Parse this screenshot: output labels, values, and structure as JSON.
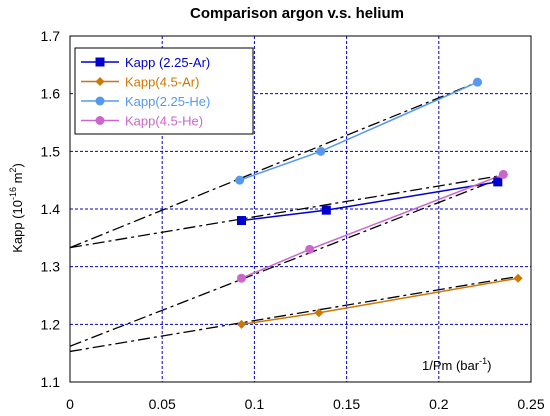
{
  "chart_data": {
    "type": "scatter",
    "title": "Comparison argon v.s. helium",
    "xlabel": {
      "base": "1/Pm (bar",
      "sup": "-1",
      "tail": ")"
    },
    "ylabel": {
      "base": "Kapp (10",
      "sup1": "-16",
      "mid": " m",
      "sup2": "2",
      "tail": ")"
    },
    "xlim": [
      0,
      0.25
    ],
    "ylim": [
      1.1,
      1.7
    ],
    "xticks": [
      0,
      0.05,
      0.1,
      0.15,
      0.2,
      0.25
    ],
    "xtick_labels": [
      "0",
      "0.05",
      "0.1",
      "0.15",
      "0.2",
      "0.25"
    ],
    "yticks": [
      1.1,
      1.2,
      1.3,
      1.4,
      1.5,
      1.6,
      1.7
    ],
    "ytick_labels": [
      "1.1",
      "1.2",
      "1.3",
      "1.4",
      "1.5",
      "1.6",
      "1.7"
    ],
    "grid": true,
    "legend_position": "top-left",
    "series": [
      {
        "name": "Kapp (2.25-Ar)",
        "color": "#0000cc",
        "marker": "square",
        "x": [
          0.093,
          0.139,
          0.232
        ],
        "y": [
          1.38,
          1.398,
          1.447
        ],
        "fit": {
          "x": [
            0,
            0.232
          ],
          "y": [
            1.333,
            1.457
          ]
        }
      },
      {
        "name": "Kapp(4.5-Ar)",
        "color": "#cc7700",
        "marker": "diamond",
        "x": [
          0.093,
          0.135,
          0.243
        ],
        "y": [
          1.2,
          1.22,
          1.28
        ],
        "fit": {
          "x": [
            0,
            0.243
          ],
          "y": [
            1.153,
            1.283
          ]
        }
      },
      {
        "name": "Kapp(2.25-He)",
        "color": "#5599ee",
        "marker": "circle",
        "x": [
          0.092,
          0.136,
          0.221
        ],
        "y": [
          1.45,
          1.5,
          1.62
        ],
        "fit": {
          "x": [
            0,
            0.221
          ],
          "y": [
            1.333,
            1.62
          ]
        }
      },
      {
        "name": "Kapp(4.5-He)",
        "color": "#cc66cc",
        "marker": "circle",
        "x": [
          0.093,
          0.13,
          0.235
        ],
        "y": [
          1.28,
          1.33,
          1.46
        ],
        "fit": {
          "x": [
            0,
            0.235
          ],
          "y": [
            1.162,
            1.455
          ]
        }
      }
    ]
  }
}
